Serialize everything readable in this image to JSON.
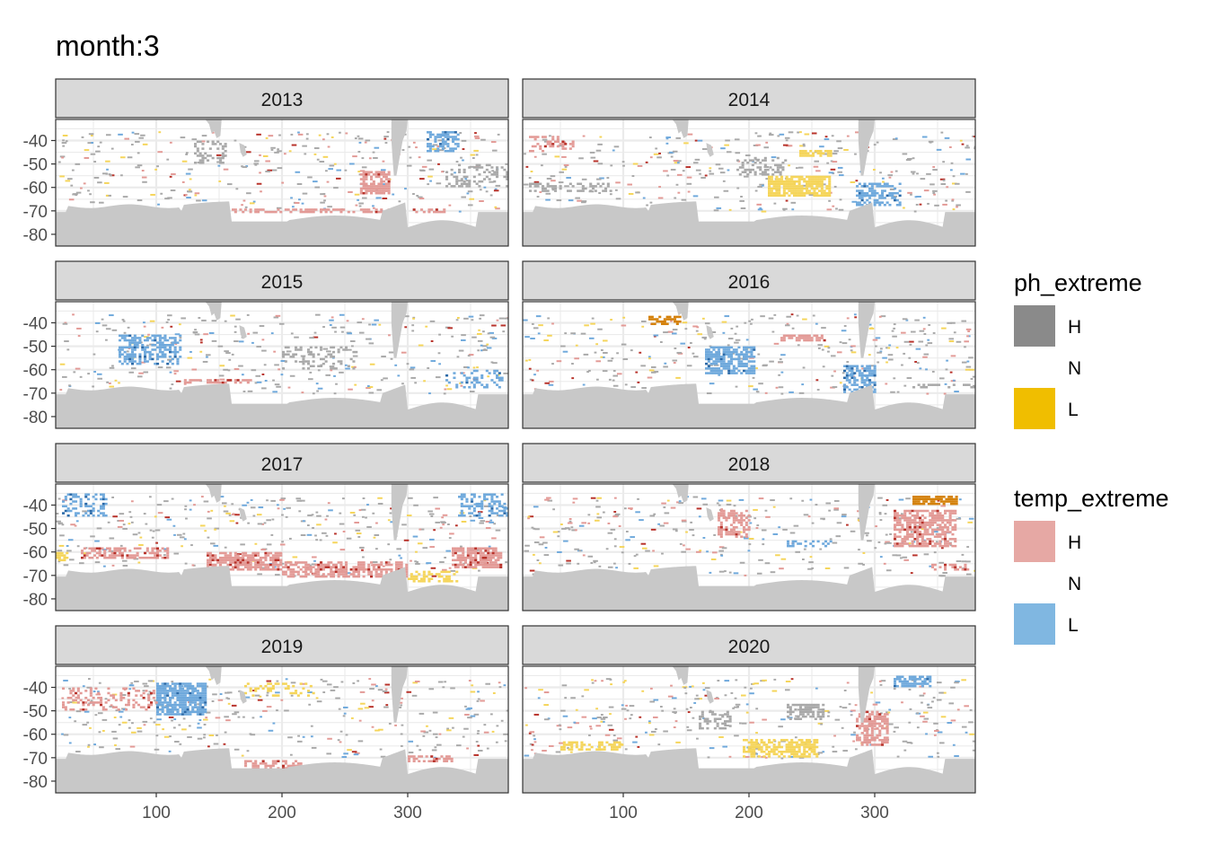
{
  "chart_data": {
    "type": "heatmap",
    "title": "month:3",
    "xlabel": "",
    "ylabel": "",
    "xlim": [
      20,
      380
    ],
    "ylim": [
      -85,
      -31
    ],
    "x_ticks": [
      100,
      200,
      300
    ],
    "y_ticks": [
      -40,
      -50,
      -60,
      -70,
      -80
    ],
    "grid": true,
    "facets": [
      "2013",
      "2014",
      "2015",
      "2016",
      "2017",
      "2018",
      "2019",
      "2020"
    ],
    "legends": [
      {
        "title": "ph_extreme",
        "entries": [
          {
            "label": "H",
            "color": "#8a8a8a"
          },
          {
            "label": "N",
            "color": "#ffffff"
          },
          {
            "label": "L",
            "color": "#f0be00"
          }
        ]
      },
      {
        "title": "temp_extreme",
        "entries": [
          {
            "label": "H",
            "color": "#e6a8a4"
          },
          {
            "label": "N",
            "color": "#ffffff"
          },
          {
            "label": "L",
            "color": "#80b7e1"
          }
        ]
      }
    ],
    "colors": {
      "land": "#c8c8c8",
      "ph_H": "#a9a9a9",
      "ph_L": "#f5d55a",
      "temp_H": "#e39a96",
      "temp_L": "#6fa9dc",
      "both_dark": "#b8322a",
      "both_orange": "#d4810a",
      "both_blue": "#2c6aa8"
    },
    "extreme_regions": [
      {
        "year": "2013",
        "patches": [
          {
            "type": "temp_H",
            "x": [
              262,
              285
            ],
            "y": [
              -53,
              -63
            ],
            "density": 0.75
          },
          {
            "type": "temp_L",
            "x": [
              315,
              340
            ],
            "y": [
              -36,
              -45
            ],
            "density": 0.6
          },
          {
            "type": "ph_H",
            "x": [
              130,
              155
            ],
            "y": [
              -40,
              -50
            ],
            "density": 0.4
          },
          {
            "type": "temp_H",
            "x": [
              160,
              330
            ],
            "y": [
              -69,
              -71
            ],
            "density": 0.5
          },
          {
            "type": "ph_H",
            "x": [
              330,
              380
            ],
            "y": [
              -50,
              -60
            ],
            "density": 0.3
          }
        ]
      },
      {
        "year": "2014",
        "patches": [
          {
            "type": "ph_L",
            "x": [
              215,
              265
            ],
            "y": [
              -55,
              -64
            ],
            "density": 0.8
          },
          {
            "type": "ph_L",
            "x": [
              240,
              265
            ],
            "y": [
              -44,
              -47
            ],
            "density": 0.7
          },
          {
            "type": "temp_L",
            "x": [
              285,
              320
            ],
            "y": [
              -58,
              -68
            ],
            "density": 0.5
          },
          {
            "type": "ph_H",
            "x": [
              190,
              230
            ],
            "y": [
              -47,
              -55
            ],
            "density": 0.4
          },
          {
            "type": "ph_H",
            "x": [
              25,
              90
            ],
            "y": [
              -58,
              -62
            ],
            "density": 0.4
          },
          {
            "type": "temp_H",
            "x": [
              25,
              60
            ],
            "y": [
              -38,
              -45
            ],
            "density": 0.3
          }
        ]
      },
      {
        "year": "2015",
        "patches": [
          {
            "type": "temp_L",
            "x": [
              70,
              120
            ],
            "y": [
              -45,
              -58
            ],
            "density": 0.5
          },
          {
            "type": "temp_H",
            "x": [
              120,
              175
            ],
            "y": [
              -64,
              -66
            ],
            "density": 0.5
          },
          {
            "type": "ph_H",
            "x": [
              200,
              260
            ],
            "y": [
              -50,
              -60
            ],
            "density": 0.25
          },
          {
            "type": "temp_L",
            "x": [
              330,
              375
            ],
            "y": [
              -60,
              -68
            ],
            "density": 0.3
          }
        ]
      },
      {
        "year": "2016",
        "patches": [
          {
            "type": "temp_L",
            "x": [
              165,
              205
            ],
            "y": [
              -50,
              -62
            ],
            "density": 0.7
          },
          {
            "type": "temp_L",
            "x": [
              275,
              300
            ],
            "y": [
              -58,
              -70
            ],
            "density": 0.6
          },
          {
            "type": "temp_H",
            "x": [
              225,
              260
            ],
            "y": [
              -45,
              -48
            ],
            "density": 0.7
          },
          {
            "type": "both_orange",
            "x": [
              120,
              145
            ],
            "y": [
              -37,
              -41
            ],
            "density": 0.6
          },
          {
            "type": "ph_H",
            "x": [
              330,
              380
            ],
            "y": [
              -66,
              -68
            ],
            "density": 0.4
          }
        ]
      },
      {
        "year": "2017",
        "patches": [
          {
            "type": "temp_H",
            "x": [
              40,
              110
            ],
            "y": [
              -58,
              -63
            ],
            "density": 0.6
          },
          {
            "type": "temp_H",
            "x": [
              140,
              200
            ],
            "y": [
              -60,
              -68
            ],
            "density": 0.75
          },
          {
            "type": "temp_H",
            "x": [
              200,
              300
            ],
            "y": [
              -64,
              -71
            ],
            "density": 0.6
          },
          {
            "type": "temp_H",
            "x": [
              335,
              375
            ],
            "y": [
              -58,
              -67
            ],
            "density": 0.8
          },
          {
            "type": "temp_L",
            "x": [
              25,
              60
            ],
            "y": [
              -35,
              -45
            ],
            "density": 0.4
          },
          {
            "type": "temp_L",
            "x": [
              340,
              380
            ],
            "y": [
              -35,
              -45
            ],
            "density": 0.4
          },
          {
            "type": "ph_L",
            "x": [
              300,
              340
            ],
            "y": [
              -68,
              -73
            ],
            "density": 0.5
          },
          {
            "type": "ph_L",
            "x": [
              20,
              30
            ],
            "y": [
              -60,
              -64
            ],
            "density": 0.8
          }
        ]
      },
      {
        "year": "2018",
        "patches": [
          {
            "type": "temp_H",
            "x": [
              315,
              365
            ],
            "y": [
              -42,
              -58
            ],
            "density": 0.65
          },
          {
            "type": "both_orange",
            "x": [
              330,
              365
            ],
            "y": [
              -36,
              -40
            ],
            "density": 0.8
          },
          {
            "type": "temp_H",
            "x": [
              175,
              200
            ],
            "y": [
              -42,
              -54
            ],
            "density": 0.5
          },
          {
            "type": "temp_L",
            "x": [
              230,
              265
            ],
            "y": [
              -55,
              -58
            ],
            "density": 0.3
          },
          {
            "type": "temp_H",
            "x": [
              345,
              375
            ],
            "y": [
              -65,
              -68
            ],
            "density": 0.5
          }
        ]
      },
      {
        "year": "2019",
        "patches": [
          {
            "type": "temp_L",
            "x": [
              100,
              140
            ],
            "y": [
              -38,
              -52
            ],
            "density": 0.8
          },
          {
            "type": "temp_H",
            "x": [
              170,
              215
            ],
            "y": [
              -71,
              -75
            ],
            "density": 0.6
          },
          {
            "type": "ph_L",
            "x": [
              170,
              225
            ],
            "y": [
              -38,
              -44
            ],
            "density": 0.3
          },
          {
            "type": "temp_H",
            "x": [
              25,
              100
            ],
            "y": [
              -40,
              -50
            ],
            "density": 0.3
          },
          {
            "type": "temp_H",
            "x": [
              300,
              335
            ],
            "y": [
              -69,
              -72
            ],
            "density": 0.5
          }
        ]
      },
      {
        "year": "2020",
        "patches": [
          {
            "type": "ph_L",
            "x": [
              195,
              255
            ],
            "y": [
              -62,
              -70
            ],
            "density": 0.6
          },
          {
            "type": "ph_L",
            "x": [
              50,
              100
            ],
            "y": [
              -63,
              -67
            ],
            "density": 0.5
          },
          {
            "type": "ph_H",
            "x": [
              160,
              185
            ],
            "y": [
              -50,
              -58
            ],
            "density": 0.45
          },
          {
            "type": "ph_H",
            "x": [
              230,
              260
            ],
            "y": [
              -47,
              -54
            ],
            "density": 0.6
          },
          {
            "type": "temp_H",
            "x": [
              285,
              310
            ],
            "y": [
              -50,
              -65
            ],
            "density": 0.6
          },
          {
            "type": "temp_L",
            "x": [
              315,
              345
            ],
            "y": [
              -35,
              -40
            ],
            "density": 0.7
          }
        ]
      }
    ]
  }
}
